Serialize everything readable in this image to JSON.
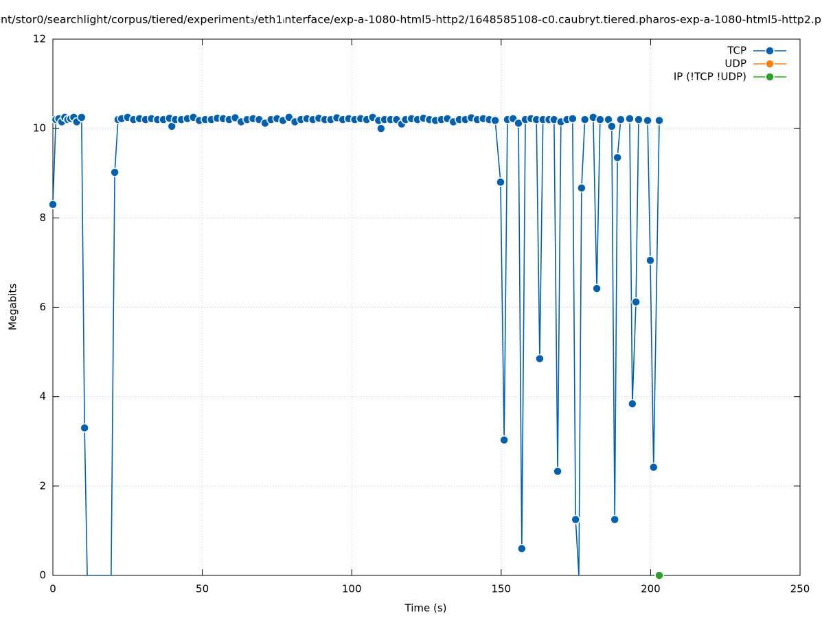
{
  "chart_data": {
    "type": "line",
    "title": "nt/stor0/searchlight/corpus/tiered/experiment₃/eth1ᵢnterface/exp-a-1080-html5-http2/1648585108-c0.caubryt.tiered.pharos-exp-a-1080-html5-http2.p",
    "x_label": "Time (s)",
    "y_label": "Megabits",
    "xlim": [
      0,
      250
    ],
    "xticks": [
      0,
      50,
      100,
      150,
      200,
      250
    ],
    "ylim": [
      0,
      12
    ],
    "yticks": [
      0,
      2,
      4,
      6,
      8,
      10,
      12
    ],
    "grid": true,
    "legend": "top-right",
    "series": [
      {
        "name": "TCP",
        "color": "#0060ad",
        "x": [
          0,
          1,
          2,
          3,
          4,
          5,
          6,
          7,
          8,
          9.6,
          10.6,
          11.5,
          19.5,
          20.7,
          21.8,
          23,
          25,
          27,
          29,
          31,
          33,
          35,
          37,
          39,
          39.8,
          41,
          43,
          45,
          47,
          49,
          51,
          53,
          55,
          57,
          59,
          61,
          63,
          65,
          67,
          69,
          71,
          73,
          75,
          77,
          79,
          81,
          83,
          85,
          87,
          89,
          91,
          93,
          95,
          97,
          99,
          101,
          103,
          105,
          107,
          109,
          109.8,
          111,
          113,
          115,
          116.7,
          118,
          120,
          122,
          124,
          126,
          128,
          130,
          132,
          134,
          136,
          138,
          140,
          142,
          144,
          146,
          148,
          149.8,
          151,
          152.1,
          154,
          155.8,
          156.9,
          158.1,
          160,
          161.8,
          162.9,
          164,
          166,
          167.7,
          168.9,
          170,
          172,
          173.9,
          174.9,
          176,
          176.9,
          178,
          180.8,
          182,
          183.1,
          185.9,
          187,
          188,
          188.9,
          190,
          193,
          193.9,
          195.1,
          196,
          199,
          199.9,
          201,
          202.9
        ],
        "values": [
          8.3,
          10.2,
          10.22,
          10.15,
          10.25,
          10.2,
          10.22,
          10.25,
          10.15,
          10.25,
          3.3,
          0,
          0,
          9.02,
          10.2,
          10.22,
          10.25,
          10.2,
          10.22,
          10.2,
          10.22,
          10.2,
          10.2,
          10.23,
          10.05,
          10.2,
          10.2,
          10.22,
          10.25,
          10.18,
          10.2,
          10.2,
          10.23,
          10.22,
          10.2,
          10.24,
          10.15,
          10.2,
          10.22,
          10.2,
          10.12,
          10.2,
          10.22,
          10.18,
          10.25,
          10.15,
          10.2,
          10.22,
          10.2,
          10.23,
          10.2,
          10.2,
          10.24,
          10.2,
          10.22,
          10.2,
          10.22,
          10.2,
          10.25,
          10.18,
          10.0,
          10.2,
          10.2,
          10.2,
          10.1,
          10.2,
          10.22,
          10.2,
          10.23,
          10.2,
          10.18,
          10.2,
          10.22,
          10.15,
          10.2,
          10.2,
          10.24,
          10.2,
          10.22,
          10.2,
          10.18,
          8.8,
          3.03,
          10.2,
          10.22,
          10.12,
          0.6,
          10.2,
          10.22,
          10.2,
          4.85,
          10.2,
          10.2,
          10.2,
          2.33,
          10.15,
          10.2,
          10.22,
          1.25,
          0,
          8.67,
          10.2,
          10.25,
          6.42,
          10.2,
          10.2,
          10.05,
          1.25,
          9.35,
          10.2,
          10.22,
          3.84,
          6.12,
          10.2,
          10.18,
          7.05,
          2.42,
          10.18
        ]
      },
      {
        "name": "UDP",
        "color": "#ff7f0e",
        "x": [],
        "values": []
      },
      {
        "name": "IP (!TCP  !UDP)",
        "color": "#2ca02c",
        "x": [
          202.9
        ],
        "values": [
          0
        ]
      }
    ]
  }
}
